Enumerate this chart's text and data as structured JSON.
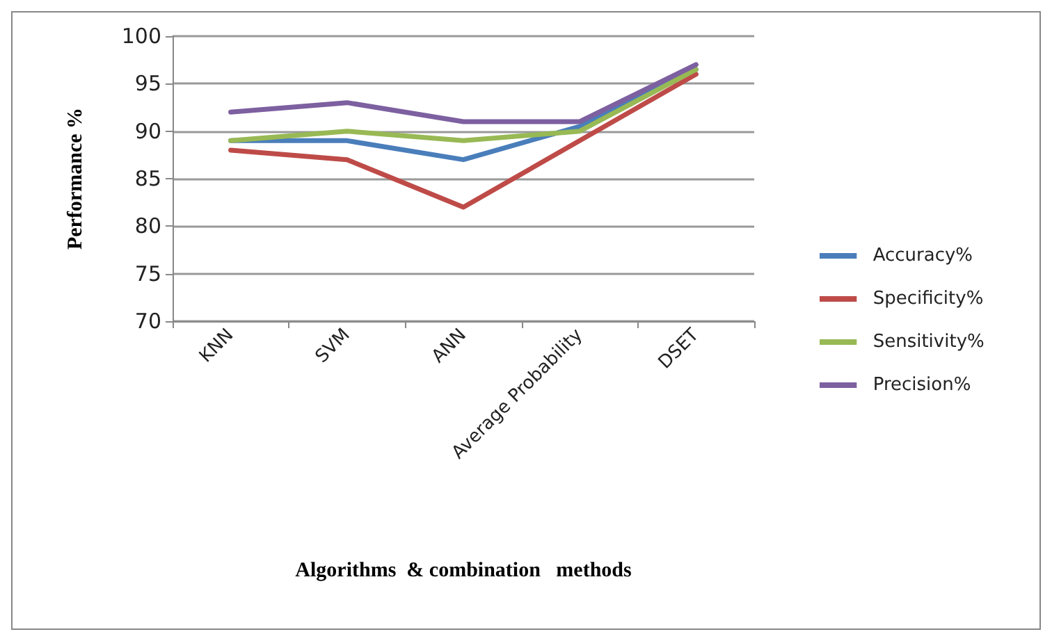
{
  "chart_data": {
    "type": "line",
    "xlabel": "Algorithms  & combination   methods",
    "ylabel": "Performance %",
    "categories": [
      "KNN",
      "SVM",
      "ANN",
      "Average Probability",
      "DSET"
    ],
    "series": [
      {
        "name": "Accuracy%",
        "color": "#4a7ebb",
        "values": [
          89,
          89,
          87,
          90.5,
          96.5
        ]
      },
      {
        "name": "Specificity%",
        "color": "#be4b48",
        "values": [
          88,
          87,
          82,
          89,
          96
        ]
      },
      {
        "name": "Sensitivity%",
        "color": "#98b954",
        "values": [
          89,
          90,
          89,
          90,
          96.5
        ]
      },
      {
        "name": "Precision%",
        "color": "#7d60a0",
        "values": [
          92,
          93,
          91,
          91,
          97
        ]
      }
    ],
    "ylim": [
      70,
      100
    ],
    "yticks": [
      70,
      75,
      80,
      85,
      90,
      95,
      100
    ],
    "grid": "y",
    "legend": "right",
    "marker": "none",
    "line_style": "solid"
  }
}
